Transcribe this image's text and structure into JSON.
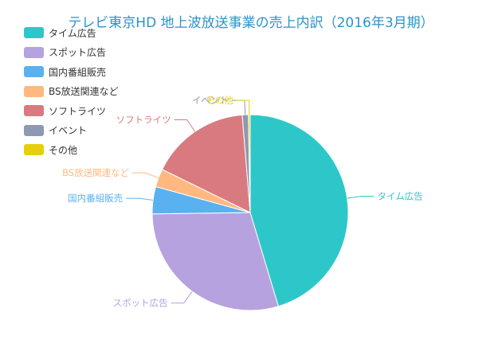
{
  "chart_data": {
    "type": "pie",
    "title": "テレビ東京HD 地上波放送事業の売上内訳（2016年3月期）",
    "legend_position": "top-left",
    "slices": [
      {
        "label": "タイム広告",
        "value": 45.5,
        "color": "#2ec7c9"
      },
      {
        "label": "スポット広告",
        "value": 29.5,
        "color": "#b6a2de"
      },
      {
        "label": "国内番組販売",
        "value": 4.5,
        "color": "#5ab1ef"
      },
      {
        "label": "BS放送関連など",
        "value": 3.0,
        "color": "#ffb980"
      },
      {
        "label": "ソフトライツ",
        "value": 16.5,
        "color": "#d87a80"
      },
      {
        "label": "イベント",
        "value": 1.0,
        "color": "#8d98b3"
      },
      {
        "label": "その他",
        "value": 0.3,
        "color": "#e5cf0d"
      }
    ]
  }
}
